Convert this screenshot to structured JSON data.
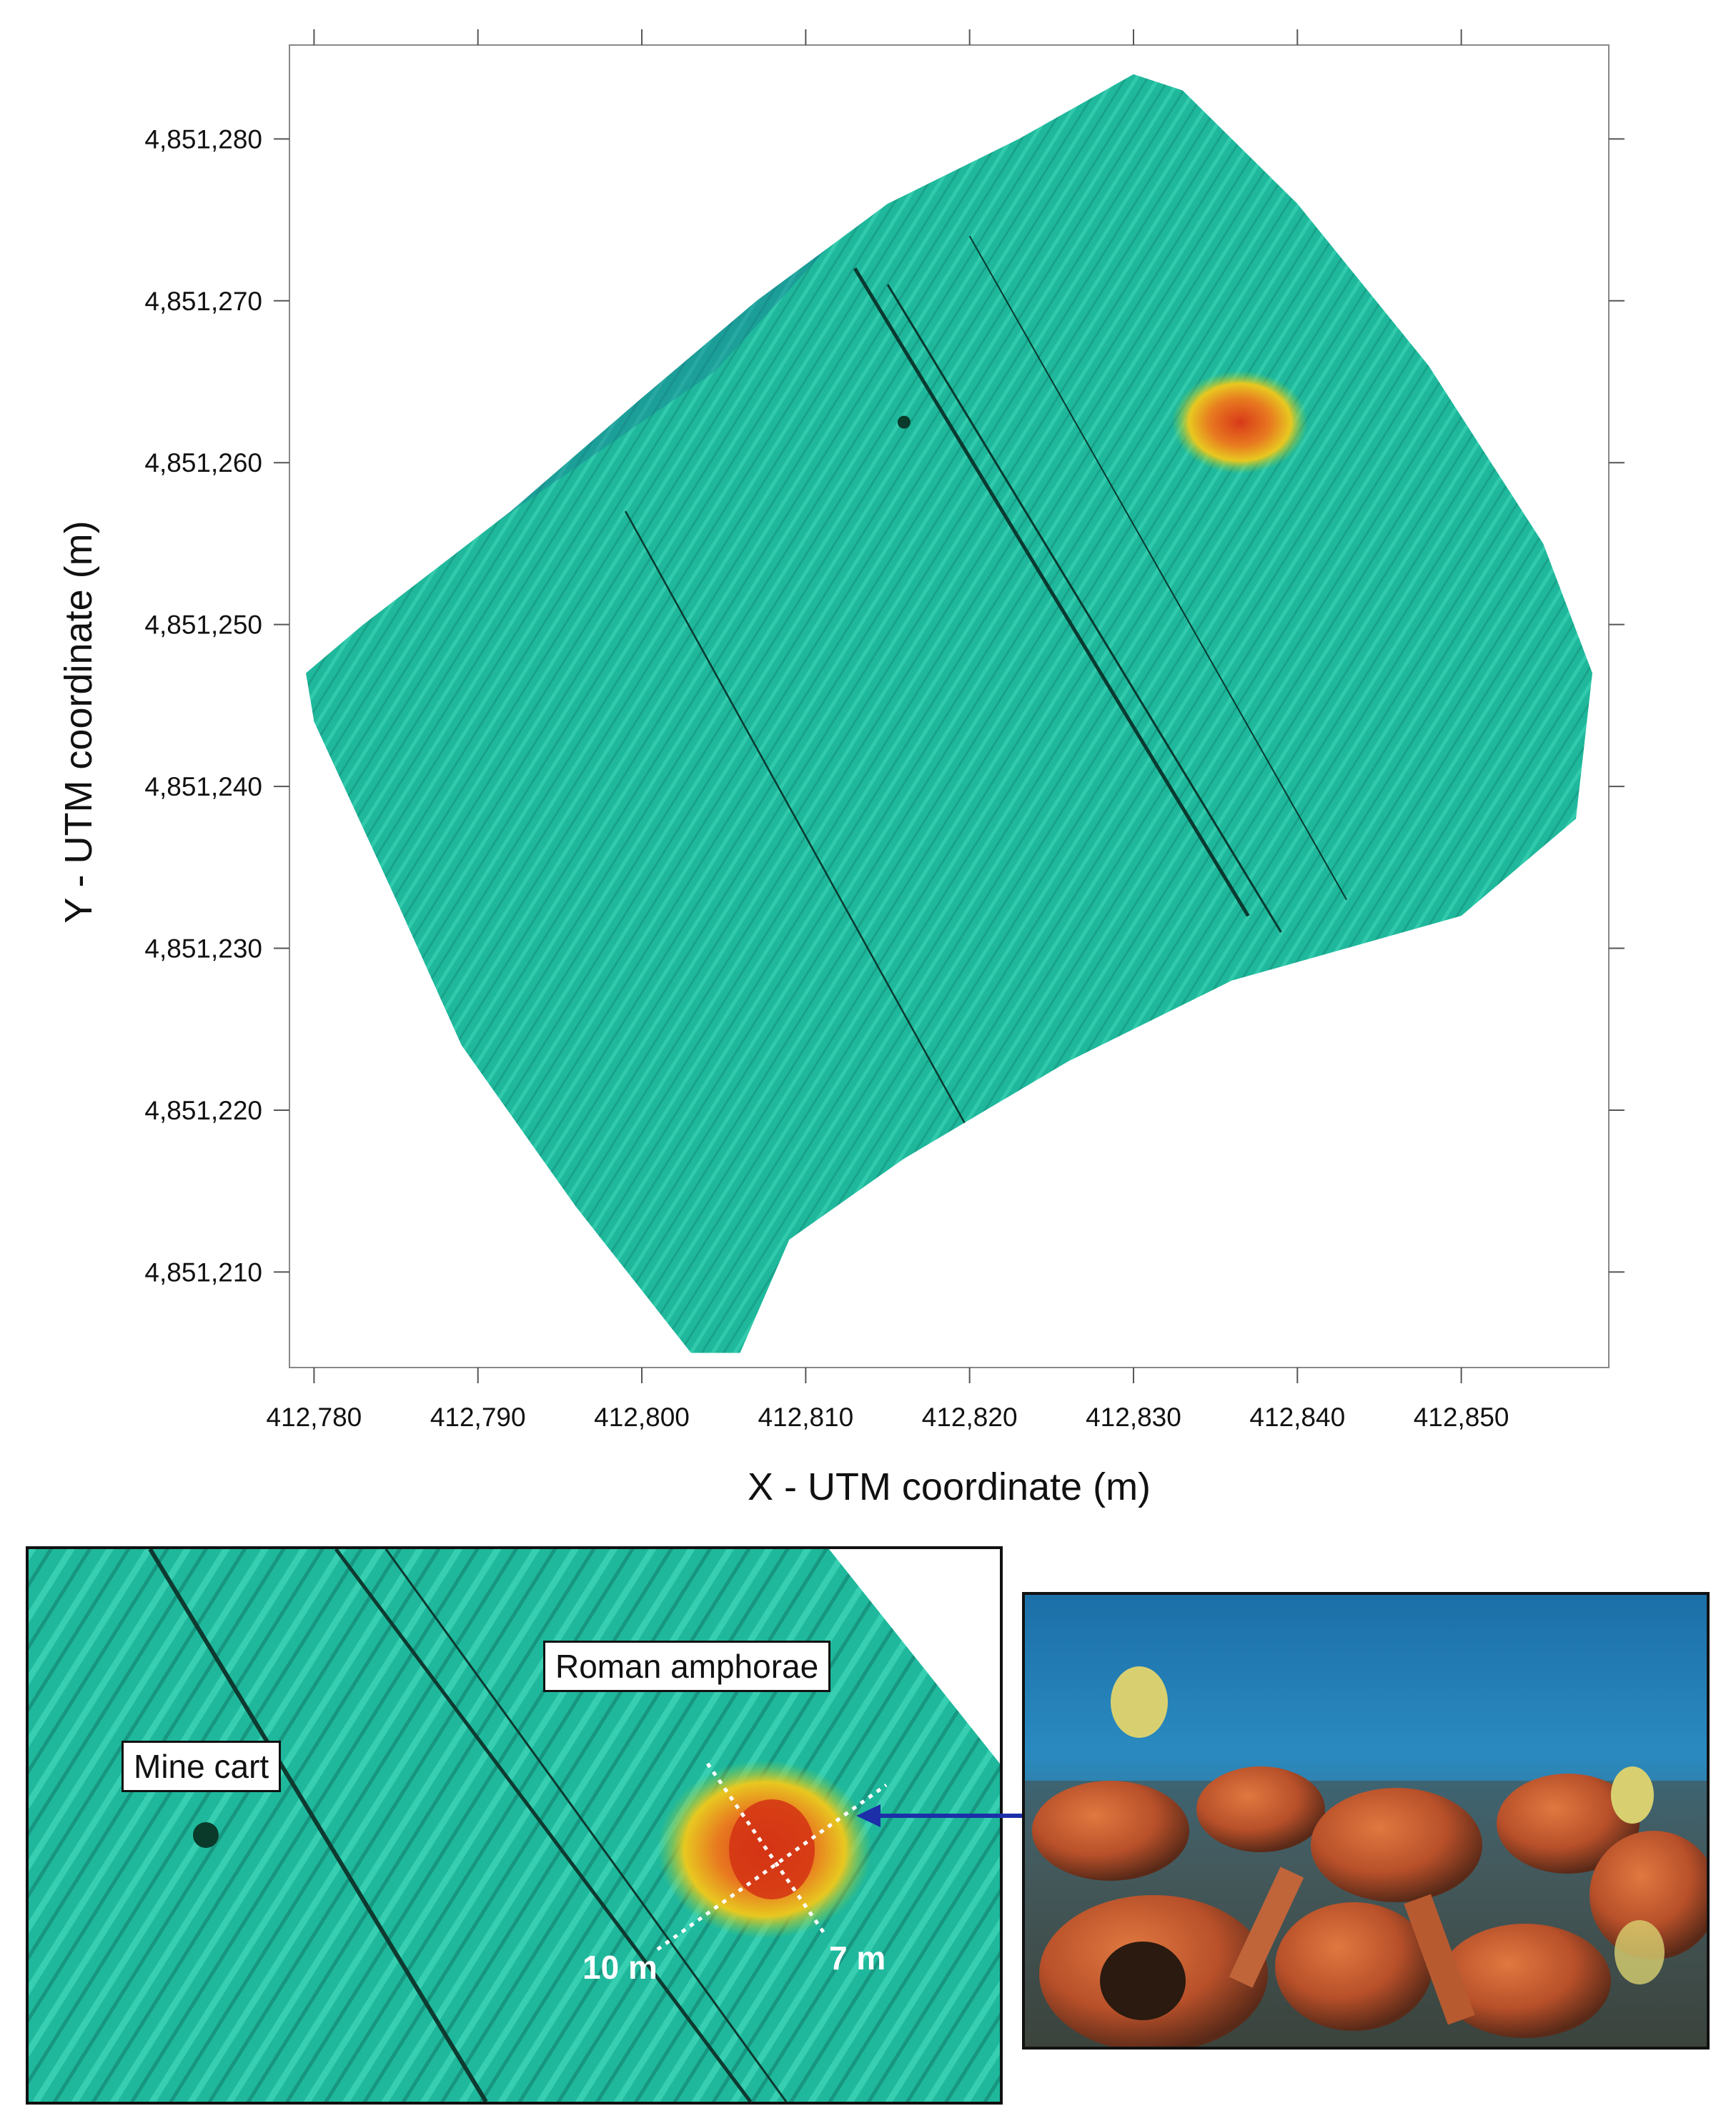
{
  "chart_data": {
    "type": "map",
    "xlabel": "X - UTM coordinate (m)",
    "ylabel": "Y - UTM coordinate (m)",
    "x_ticks": [
      "412,780",
      "412,790",
      "412,800",
      "412,810",
      "412,820",
      "412,830",
      "412,840",
      "412,850"
    ],
    "x_tick_values": [
      412780,
      412790,
      412800,
      412810,
      412820,
      412830,
      412840,
      412850
    ],
    "y_ticks": [
      "4,851,280",
      "4,851,270",
      "4,851,260",
      "4,851,250",
      "4,851,240",
      "4,851,230",
      "4,851,220",
      "4,851,210"
    ],
    "y_tick_values": [
      4851280,
      4851270,
      4851260,
      4851250,
      4851240,
      4851230,
      4851220,
      4851210
    ],
    "xlim": [
      412778.5,
      412859.0
    ],
    "ylim": [
      4851204.1,
      4851285.8
    ],
    "survey_polygon": [
      [
        412779.5,
        4851247
      ],
      [
        412783,
        4851250
      ],
      [
        412792,
        4851257
      ],
      [
        412800,
        4851264
      ],
      [
        412807,
        4851270
      ],
      [
        412815,
        4851276
      ],
      [
        412823,
        4851280
      ],
      [
        412830,
        4851284
      ],
      [
        412833,
        4851283
      ],
      [
        412840,
        4851276
      ],
      [
        412848,
        4851266
      ],
      [
        412855,
        4851255
      ],
      [
        412858,
        4851247
      ],
      [
        412857,
        4851238
      ],
      [
        412850,
        4851232
      ],
      [
        412836,
        4851228
      ],
      [
        412826,
        4851223
      ],
      [
        412816,
        4851217
      ],
      [
        412809,
        4851212
      ],
      [
        412806,
        4851205
      ],
      [
        412803,
        4851205
      ],
      [
        412796,
        4851214
      ],
      [
        412789,
        4851224
      ],
      [
        412785,
        4851233
      ],
      [
        412780,
        4851244
      ]
    ],
    "features": [
      {
        "x": 412836.5,
        "y": 4851262.5
      },
      {
        "x": 412816.0,
        "y": 4851262.5
      }
    ]
  },
  "colors": {
    "seafloor": "#1fb89c",
    "deep": "#1a4fa0",
    "mound_high": "#e0501a",
    "mound_mid": "#e8c020",
    "arrow": "#1c2fa8"
  },
  "inset": {
    "label_amphorae": "Roman amphorae",
    "label_minecart": "Mine cart",
    "dim_long": "10 m",
    "dim_short": "7 m"
  },
  "photo": {
    "icon": "underwater-amphorae-photo"
  }
}
